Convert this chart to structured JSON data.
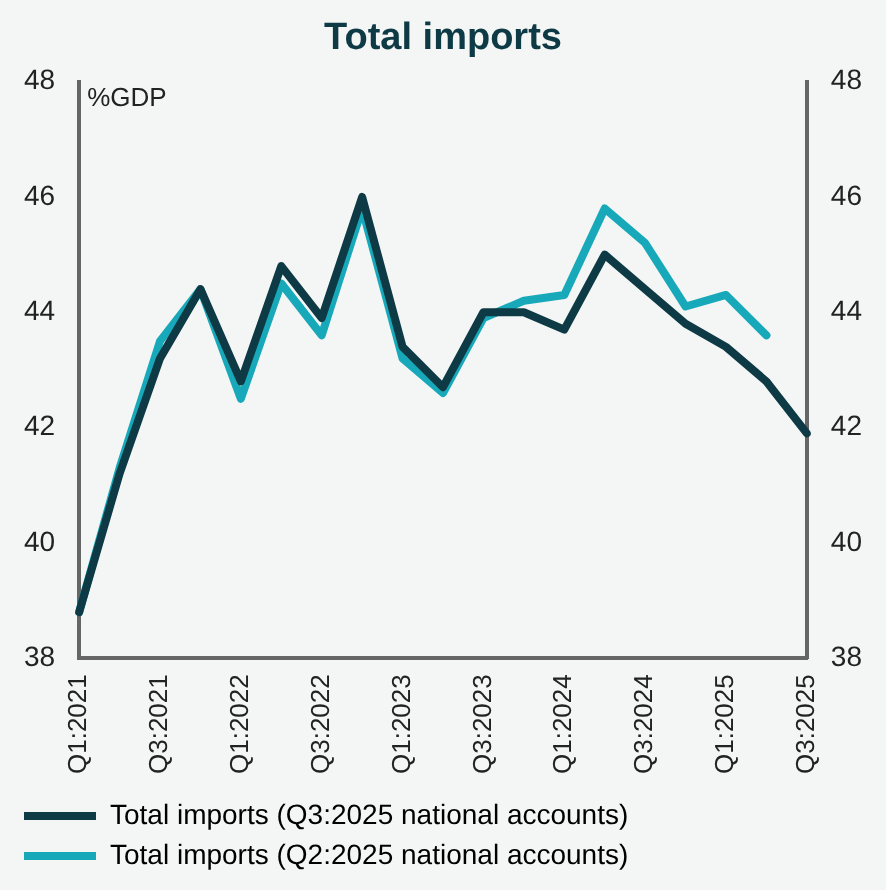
{
  "chart_data": {
    "type": "line",
    "title": "Total imports",
    "ylabel": "%GDP",
    "categories": [
      "Q1:2021",
      null,
      "Q3:2021",
      null,
      "Q1:2022",
      null,
      "Q3:2022",
      null,
      "Q1:2023",
      null,
      "Q3:2023",
      null,
      "Q1:2024",
      null,
      "Q3:2024",
      null,
      "Q1:2025",
      null,
      "Q3:2025"
    ],
    "series": [
      {
        "name": "Total imports (Q3:2025 national accounts)",
        "color": "#0d3a45",
        "values": [
          38.8,
          41.2,
          43.2,
          44.4,
          42.8,
          44.8,
          43.9,
          46.0,
          43.4,
          42.7,
          44.0,
          44.0,
          43.7,
          45.0,
          44.4,
          43.8,
          43.4,
          42.8,
          41.9
        ]
      },
      {
        "name": "Total imports (Q2:2025 national accounts)",
        "color": "#17a9b9",
        "values": [
          38.8,
          41.3,
          43.5,
          44.4,
          42.5,
          44.5,
          43.6,
          45.8,
          43.2,
          42.6,
          43.9,
          44.2,
          44.3,
          45.8,
          45.2,
          44.1,
          44.3,
          43.6,
          null
        ]
      }
    ],
    "ylim": [
      38,
      48
    ],
    "yticks": [
      38,
      40,
      42,
      44,
      46,
      48
    ],
    "y2lim": [
      38,
      48
    ],
    "y2ticks": [
      38,
      40,
      42,
      44,
      46,
      48
    ],
    "grid": false,
    "legend": "bottom",
    "marker": "none",
    "line_style": "solid"
  }
}
